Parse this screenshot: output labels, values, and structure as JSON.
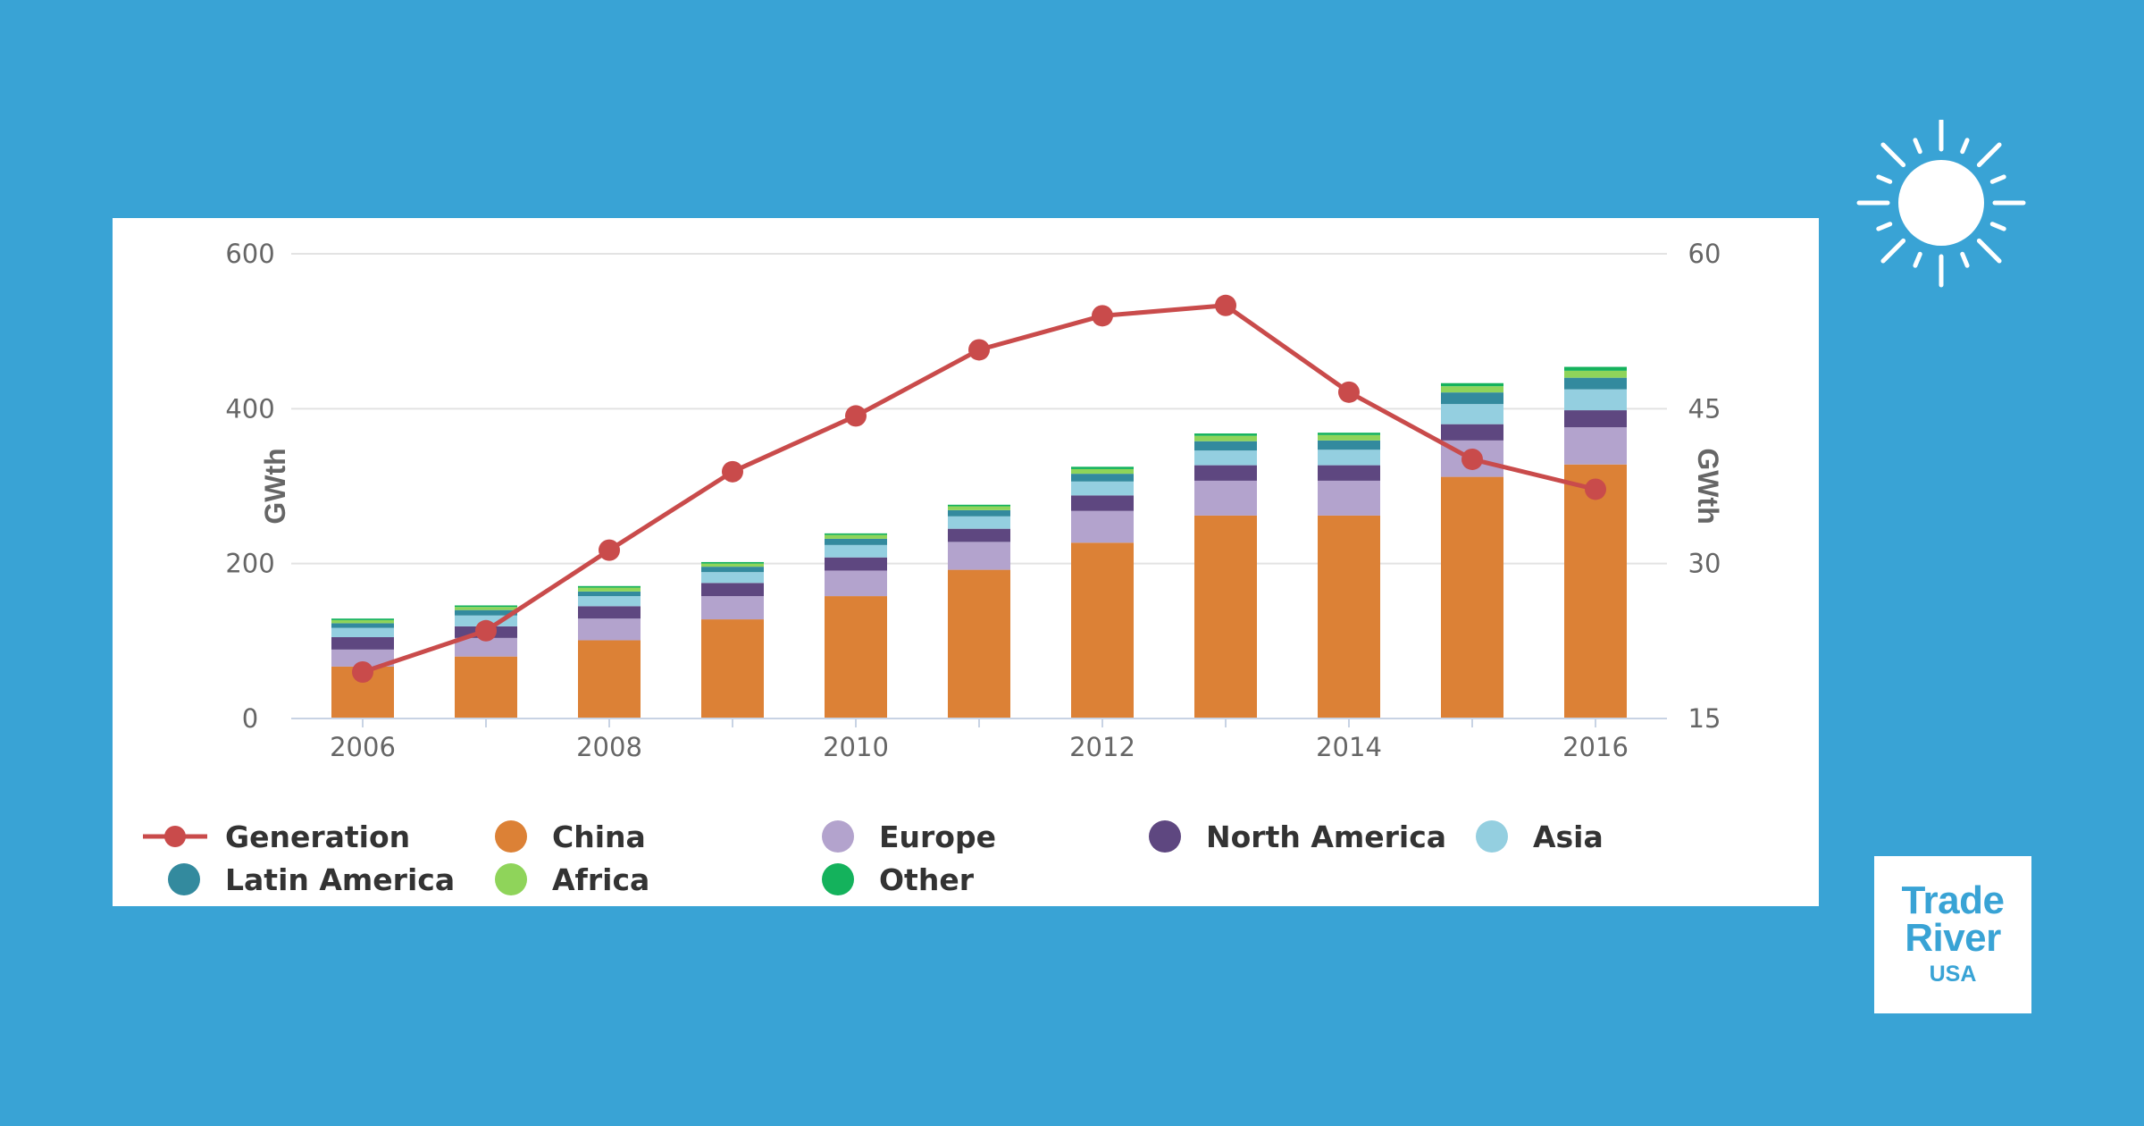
{
  "brand": {
    "line1": "Trade",
    "line2": "River",
    "line3": "USA",
    "logo_icon": "sun-icon"
  },
  "colors": {
    "background": "#39a3d5",
    "generation": "#c94b4b",
    "China": "#dc8136",
    "Europe": "#b3a3cd",
    "North America": "#5e4780",
    "Asia": "#94cfe0",
    "Latin America": "#338a9e",
    "Africa": "#8fd45a",
    "Other": "#14b25c"
  },
  "chart_data": {
    "type": "bar",
    "stacked": true,
    "categories": [
      "2006",
      "2007",
      "2008",
      "2009",
      "2010",
      "2011",
      "2012",
      "2013",
      "2014",
      "2015",
      "2016"
    ],
    "x_tick_labels": [
      "2006",
      "2008",
      "2010",
      "2012",
      "2014",
      "2016"
    ],
    "ylabel": "GWth",
    "ylabel_right": "GWth",
    "ylim": [
      0,
      600
    ],
    "yticks": [
      0,
      200,
      400,
      600
    ],
    "ylim_right": [
      15,
      60
    ],
    "yticks_right": [
      15,
      30,
      45,
      60
    ],
    "grid": true,
    "legend_position": "bottom",
    "series": [
      {
        "name": "China",
        "values": [
          67,
          80,
          101,
          128,
          158,
          192,
          227,
          262,
          262,
          312,
          328
        ]
      },
      {
        "name": "Europe",
        "values": [
          22,
          24,
          28,
          30,
          33,
          36,
          41,
          45,
          45,
          47,
          48
        ]
      },
      {
        "name": "North America",
        "values": [
          16,
          15,
          16,
          17,
          17,
          17,
          20,
          20,
          20,
          21,
          22
        ]
      },
      {
        "name": "Asia",
        "values": [
          12,
          14,
          13,
          14,
          16,
          16,
          18,
          19,
          20,
          26,
          27
        ]
      },
      {
        "name": "Latin America",
        "values": [
          6,
          7,
          6,
          7,
          8,
          8,
          10,
          12,
          12,
          15,
          15
        ]
      },
      {
        "name": "Africa",
        "values": [
          4,
          4,
          5,
          4,
          5,
          5,
          6,
          7,
          7,
          8,
          9
        ]
      },
      {
        "name": "Other",
        "values": [
          2,
          2,
          2,
          2,
          2,
          2,
          3,
          3,
          3,
          4,
          5
        ]
      }
    ],
    "line_series": {
      "name": "Generation",
      "axis": "right",
      "values": [
        19.5,
        23.5,
        31.3,
        38.9,
        44.3,
        50.7,
        54.0,
        55.0,
        46.6,
        40.1,
        37.2
      ]
    }
  }
}
